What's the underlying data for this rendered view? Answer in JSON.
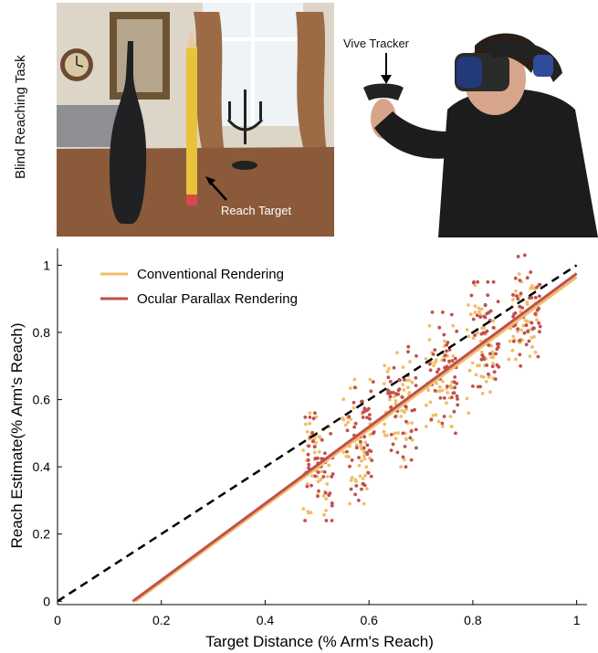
{
  "header": {
    "side_label": "Blind Reaching Task",
    "reach_target_label": "Reach Target",
    "tracker_label": "Vive Tracker"
  },
  "colors": {
    "conventional": "#F0BD6A",
    "ocular": "#C0504D",
    "identity": "#000000"
  },
  "chart_data": {
    "type": "scatter",
    "xlabel": "Target Distance (% Arm's Reach)",
    "ylabel": "Reach Estimate(% Arm's Reach)",
    "xlim": [
      0,
      1.02
    ],
    "ylim": [
      -0.01,
      1.05
    ],
    "xticks": [
      "0",
      "0.2",
      "0.4",
      "0.6",
      "0.8",
      "1"
    ],
    "yticks": [
      "0",
      "0.2",
      "0.4",
      "0.6",
      "0.8",
      "1"
    ],
    "legend_position": "top-left",
    "target_distances": [
      0.5,
      0.58,
      0.66,
      0.74,
      0.82,
      0.9
    ],
    "series": [
      {
        "name": "Conventional Rendering",
        "color": "#F0BD6A",
        "fit": {
          "x": [
            0.15,
            1.0
          ],
          "y": [
            0.0,
            0.965
          ]
        },
        "clusters": [
          {
            "x": 0.5,
            "y_range": [
              0.22,
              0.56
            ],
            "y_mean": 0.4
          },
          {
            "x": 0.58,
            "y_range": [
              0.29,
              0.66
            ],
            "y_mean": 0.47
          },
          {
            "x": 0.66,
            "y_range": [
              0.4,
              0.74
            ],
            "y_mean": 0.57
          },
          {
            "x": 0.74,
            "y_range": [
              0.52,
              0.82
            ],
            "y_mean": 0.67
          },
          {
            "x": 0.82,
            "y_range": [
              0.56,
              0.94
            ],
            "y_mean": 0.76
          },
          {
            "x": 0.9,
            "y_range": [
              0.72,
              1.04
            ],
            "y_mean": 0.84
          }
        ]
      },
      {
        "name": "Ocular Parallax Rendering",
        "color": "#C0504D",
        "fit": {
          "x": [
            0.145,
            1.0
          ],
          "y": [
            0.0,
            0.975
          ]
        },
        "clusters": [
          {
            "x": 0.5,
            "y_range": [
              0.24,
              0.56
            ],
            "y_mean": 0.41
          },
          {
            "x": 0.58,
            "y_range": [
              0.3,
              0.68
            ],
            "y_mean": 0.48
          },
          {
            "x": 0.66,
            "y_range": [
              0.4,
              0.76
            ],
            "y_mean": 0.58
          },
          {
            "x": 0.74,
            "y_range": [
              0.5,
              0.86
            ],
            "y_mean": 0.68
          },
          {
            "x": 0.82,
            "y_range": [
              0.58,
              0.95
            ],
            "y_mean": 0.77
          },
          {
            "x": 0.9,
            "y_range": [
              0.7,
              1.03
            ],
            "y_mean": 0.85
          }
        ]
      }
    ],
    "reference_line": {
      "style": "dashed",
      "x": [
        0,
        1
      ],
      "y": [
        0,
        1
      ]
    }
  }
}
